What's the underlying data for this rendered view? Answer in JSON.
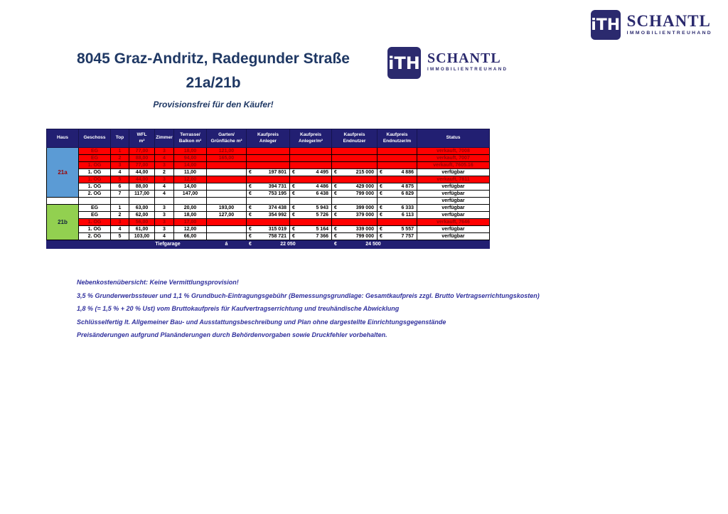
{
  "header": {
    "title_line1": "8045 Graz-Andritz, Radegunder Straße",
    "title_line2": "21a/21b",
    "subtitle": "Provisionsfrei für den Käufer!"
  },
  "logo": {
    "mark": "iTH",
    "name": "SCHANTL",
    "tagline": "IMMOBILIENTREUHAND"
  },
  "table": {
    "currency": "€",
    "headers": [
      "Haus",
      "Geschoss",
      "Top",
      "WFL\nm²",
      "Zimmer",
      "Terrasse/\nBalkon m²",
      "Garten/\nGrünfläche m²",
      "Kaufpreis\nAnleger",
      "Kaufpreis\nAnleger/m²",
      "Kaufpreis\nEndnutzer",
      "Kaufpreis\nEndnutzer/m",
      "Status"
    ],
    "groups": [
      {
        "haus": "21a",
        "color": "#5b9bd5",
        "rows": [
          {
            "geschoss": "EG",
            "top": "1",
            "wfl": "77,00",
            "zimmer": "3",
            "terrasse": "18,00",
            "garten": "121,00",
            "kpa": null,
            "kpam": null,
            "kpe": null,
            "kpem": null,
            "status": "verkauft, 7008",
            "sold": true
          },
          {
            "geschoss": "EG",
            "top": "2",
            "wfl": "88,00",
            "zimmer": "4",
            "terrasse": "94,00",
            "garten": "165,00",
            "kpa": null,
            "kpam": null,
            "kpe": null,
            "kpem": null,
            "status": "verkauft, 7007",
            "sold": true
          },
          {
            "geschoss": "1. OG",
            "top": "3",
            "wfl": "77,00",
            "zimmer": "3",
            "terrasse": "14,00",
            "garten": "",
            "kpa": null,
            "kpam": null,
            "kpe": null,
            "kpem": null,
            "status": "verkauft, 7605.16",
            "sold": true
          },
          {
            "geschoss": "1. OG",
            "top": "4",
            "wfl": "44,00",
            "zimmer": "2",
            "terrasse": "11,00",
            "garten": "",
            "kpa": "197 801",
            "kpam": "4 495",
            "kpe": "215 000",
            "kpem": "4 886",
            "status": "verfügbar",
            "sold": false
          },
          {
            "geschoss": "1. OG",
            "top": "5",
            "wfl": "44,00",
            "zimmer": "3",
            "terrasse": "12,00",
            "garten": "",
            "kpa": null,
            "kpam": null,
            "kpe": null,
            "kpem": null,
            "status": "verkauft, 7811",
            "sold": true
          },
          {
            "geschoss": "1. OG",
            "top": "6",
            "wfl": "88,00",
            "zimmer": "4",
            "terrasse": "14,00",
            "garten": "",
            "kpa": "394 731",
            "kpam": "4 486",
            "kpe": "429 000",
            "kpem": "4 875",
            "status": "verfügbar",
            "sold": false
          },
          {
            "geschoss": "2. OG",
            "top": "7",
            "wfl": "117,00",
            "zimmer": "4",
            "terrasse": "147,00",
            "garten": "",
            "kpa": "753 195",
            "kpam": "6 438",
            "kpe": "799 000",
            "kpem": "6 829",
            "status": "verfügbar",
            "sold": false
          }
        ]
      },
      {
        "haus": "",
        "color": "#ffffff",
        "rows": [
          {
            "geschoss": "",
            "top": "",
            "wfl": "",
            "zimmer": "",
            "terrasse": "",
            "garten": "",
            "kpa": null,
            "kpam": null,
            "kpe": null,
            "kpem": null,
            "status": "verfügbar",
            "sold": false
          }
        ]
      },
      {
        "haus": "21b",
        "color": "#92d050",
        "rows": [
          {
            "geschoss": "EG",
            "top": "1",
            "wfl": "63,00",
            "zimmer": "3",
            "terrasse": "20,00",
            "garten": "193,00",
            "kpa": "374 438",
            "kpam": "5 943",
            "kpe": "399 000",
            "kpem": "6 333",
            "status": "verfügbar",
            "sold": false
          },
          {
            "geschoss": "EG",
            "top": "2",
            "wfl": "62,00",
            "zimmer": "3",
            "terrasse": "18,00",
            "garten": "127,00",
            "kpa": "354 992",
            "kpam": "5 726",
            "kpe": "379 000",
            "kpem": "6 113",
            "status": "verfügbar",
            "sold": false
          },
          {
            "geschoss": "1. OG",
            "top": "3",
            "wfl": "56,00",
            "zimmer": "3",
            "terrasse": "17,00",
            "garten": "",
            "kpa": null,
            "kpam": null,
            "kpe": null,
            "kpem": null,
            "status": "verkauft, 7646",
            "sold": true
          },
          {
            "geschoss": "1. OG",
            "top": "4",
            "wfl": "61,00",
            "zimmer": "3",
            "terrasse": "12,00",
            "garten": "",
            "kpa": "315 019",
            "kpam": "5 164",
            "kpe": "339 000",
            "kpem": "5 557",
            "status": "verfügbar",
            "sold": false
          },
          {
            "geschoss": "2. OG",
            "top": "5",
            "wfl": "103,00",
            "zimmer": "4",
            "terrasse": "66,00",
            "garten": "",
            "kpa": "758 721",
            "kpam": "7 366",
            "kpe": "799 000",
            "kpem": "7 757",
            "status": "verfügbar",
            "sold": false
          }
        ]
      }
    ],
    "footer": {
      "label": "Tiefgarage",
      "unit": "á",
      "anleger": "22 050",
      "endnutzer": "24 500"
    }
  },
  "notes": [
    "Nebenkostenübersicht:  Keine Vermittlungsprovision!",
    "3,5 % Grunderwerbssteuer und 1,1 % Grundbuch-Eintragungsgebühr (Bemessungsgrundlage: Gesamtkaufpreis zzgl. Brutto Vertragserrichtungskosten)",
    "1,8 % (= 1,5 % + 20 % Ust) vom Bruttokaufpreis für Kaufvertragserrichtung und treuhändische Abwicklung",
    "Schlüsselfertig lt. Allgemeiner Bau- und Ausstattungsbeschreibung und Plan ohne dargestellte Einrichtungsgegenstände",
    "Preisänderungen aufgrund Planänderungen durch Behördenvorgaben sowie Druckfehler vorbehalten."
  ]
}
